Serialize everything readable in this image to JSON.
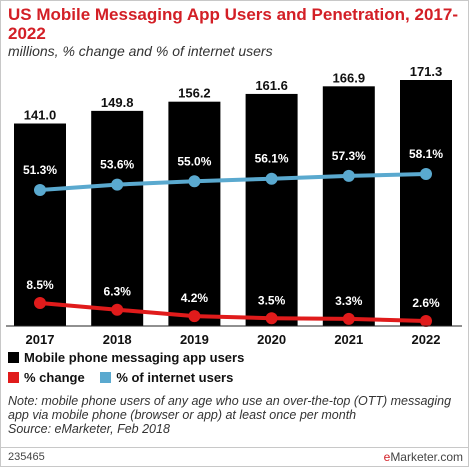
{
  "header": {
    "title": "US Mobile Messaging App Users and Penetration, 2017-2022",
    "subtitle": "millions, % change and % of internet users"
  },
  "legend": {
    "bars": "Mobile phone messaging app users",
    "change": "% change",
    "share": "% of internet users"
  },
  "colors": {
    "bars": "#000000",
    "change": "#e01b1b",
    "share": "#5aa9cf",
    "title": "#d31f26"
  },
  "footer": {
    "note": "Note: mobile phone users of any age who use an over-the-top (OTT) messaging app via mobile phone (browser or app) at least once per month",
    "source": "Source: eMarketer, Feb 2018",
    "id": "235465",
    "brand_prefix": "e",
    "brand_rest": "Marketer.com"
  },
  "chart_data": {
    "type": "bar",
    "categories": [
      "2017",
      "2018",
      "2019",
      "2020",
      "2021",
      "2022"
    ],
    "series": [
      {
        "name": "Mobile phone messaging app users",
        "type": "bar",
        "values": [
          141.0,
          149.8,
          156.2,
          161.6,
          166.9,
          171.3
        ],
        "labels": [
          "141.0",
          "149.8",
          "156.2",
          "161.6",
          "166.9",
          "171.3"
        ]
      },
      {
        "name": "% change",
        "type": "line",
        "values": [
          8.5,
          6.3,
          4.2,
          3.5,
          3.3,
          2.6
        ],
        "labels": [
          "8.5%",
          "6.3%",
          "4.2%",
          "3.5%",
          "3.3%",
          "2.6%"
        ]
      },
      {
        "name": "% of internet users",
        "type": "line",
        "values": [
          51.3,
          53.6,
          55.0,
          56.1,
          57.3,
          58.1
        ],
        "labels": [
          "51.3%",
          "53.6%",
          "55.0%",
          "56.1%",
          "57.3%",
          "58.1%"
        ]
      }
    ],
    "legend_position": "bottom",
    "grid": false
  }
}
